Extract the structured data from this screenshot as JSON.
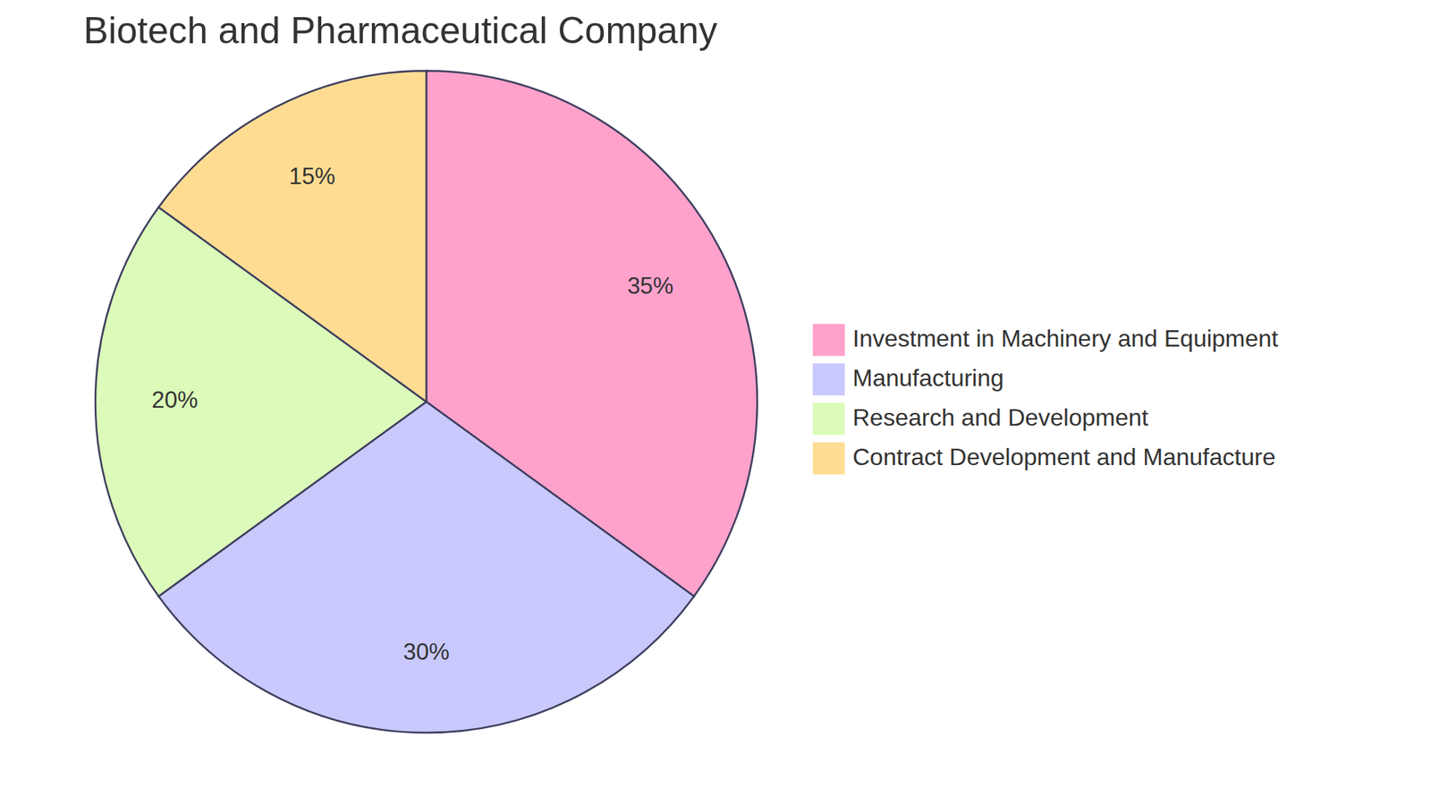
{
  "chart_data": {
    "type": "pie",
    "title": "Biotech and Pharmaceutical Company",
    "categories": [
      "Investment in Machinery and Equipment",
      "Manufacturing",
      "Research and Development",
      "Contract Development and Manufacture"
    ],
    "values": [
      35,
      30,
      20,
      15
    ],
    "value_labels": [
      "35%",
      "30%",
      "20%",
      "15%"
    ],
    "colors": [
      "#fea2cc",
      "#c9c9fe",
      "#dcfab9",
      "#fedd93"
    ],
    "data_labels": true,
    "legend": "right"
  }
}
